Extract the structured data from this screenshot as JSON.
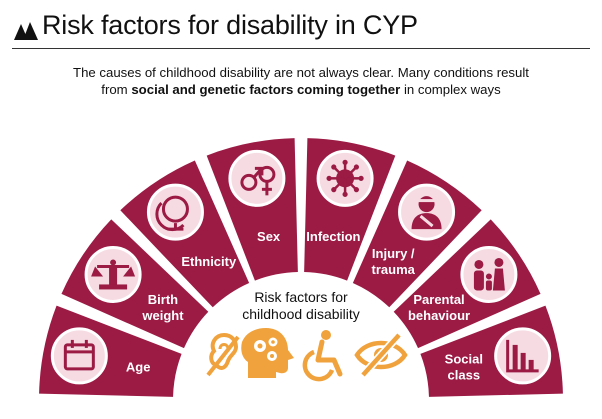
{
  "title": "Risk factors for disability in CYP",
  "intro": {
    "line1": "The causes of childhood disability are not always clear. Many conditions result",
    "line2_prefix": "from ",
    "line2_bold": "social and genetic factors coming together",
    "line2_suffix": " in complex ways"
  },
  "center": {
    "line1": "Risk factors for",
    "line2": "childhood disability"
  },
  "colors": {
    "segment": "#9b1b45",
    "icon_fill": "#f7dbe3",
    "center_icons": "#f0a23c",
    "text": "#111111"
  },
  "segments": [
    {
      "id": "age",
      "label_lines": [
        "Age"
      ],
      "icon": "calendar-icon"
    },
    {
      "id": "birth-weight",
      "label_lines": [
        "Birth",
        "weight"
      ],
      "icon": "scale-icon"
    },
    {
      "id": "ethnicity",
      "label_lines": [
        "Ethnicity"
      ],
      "icon": "globe-icon"
    },
    {
      "id": "sex",
      "label_lines": [
        "Sex"
      ],
      "icon": "gender-symbols-icon"
    },
    {
      "id": "infection",
      "label_lines": [
        "Infection"
      ],
      "icon": "virus-icon"
    },
    {
      "id": "injury-trauma",
      "label_lines": [
        "Injury /",
        "trauma"
      ],
      "icon": "bandaged-person-icon"
    },
    {
      "id": "parental-behaviour",
      "label_lines": [
        "Parental",
        "behaviour"
      ],
      "icon": "family-icon"
    },
    {
      "id": "social-class",
      "label_lines": [
        "Social",
        "class"
      ],
      "icon": "bar-chart-icon"
    }
  ],
  "center_icons": [
    "hearing-impaired-icon",
    "brain-gears-icon",
    "wheelchair-icon",
    "eye-crossed-icon"
  ]
}
